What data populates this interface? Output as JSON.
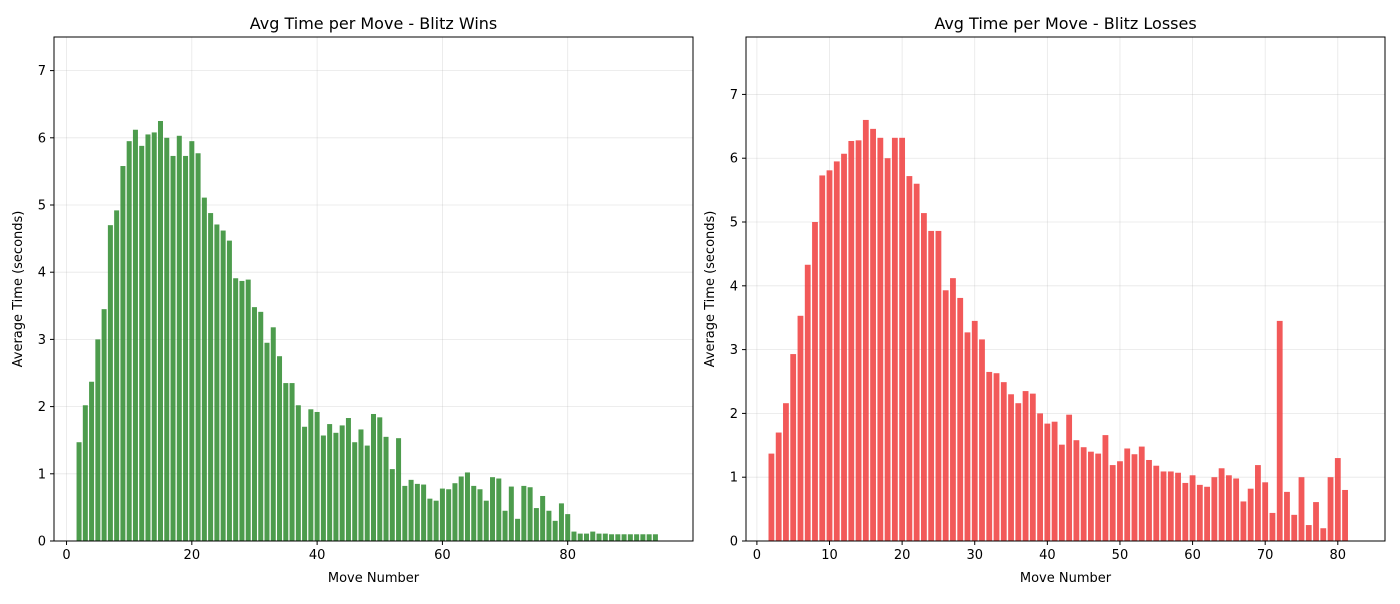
{
  "chart_data": [
    {
      "type": "bar",
      "title": "Avg Time per Move - Blitz Wins",
      "xlabel": "Move Number",
      "ylabel": "Average Time (seconds)",
      "xlim": [
        -2,
        100
      ],
      "ylim": [
        0,
        7.5
      ],
      "xticks": [
        0,
        20,
        40,
        60,
        80
      ],
      "yticks": [
        0,
        1,
        2,
        3,
        4,
        5,
        6,
        7
      ],
      "grid": true,
      "color": "#2e8b2e",
      "x": [
        2,
        3,
        4,
        5,
        6,
        7,
        8,
        9,
        10,
        11,
        12,
        13,
        14,
        15,
        16,
        17,
        18,
        19,
        20,
        21,
        22,
        23,
        24,
        25,
        26,
        27,
        28,
        29,
        30,
        31,
        32,
        33,
        34,
        35,
        36,
        37,
        38,
        39,
        40,
        41,
        42,
        43,
        44,
        45,
        46,
        47,
        48,
        49,
        50,
        51,
        52,
        53,
        54,
        55,
        56,
        57,
        58,
        59,
        60,
        61,
        62,
        63,
        64,
        65,
        66,
        67,
        68,
        69,
        70,
        71,
        72,
        73,
        74,
        75,
        76,
        77,
        78,
        79,
        80,
        81,
        82,
        83,
        84,
        85,
        86,
        87,
        88,
        89,
        90,
        91,
        92,
        93,
        94
      ],
      "values": [
        1.47,
        2.02,
        2.37,
        3.0,
        3.45,
        4.7,
        4.92,
        5.58,
        5.95,
        6.12,
        5.88,
        6.05,
        6.08,
        6.25,
        6.0,
        5.73,
        6.03,
        5.73,
        5.95,
        5.77,
        5.11,
        4.88,
        4.71,
        4.62,
        4.47,
        3.91,
        3.87,
        3.89,
        3.48,
        3.41,
        2.95,
        3.18,
        2.75,
        2.35,
        2.35,
        2.02,
        1.7,
        1.96,
        1.92,
        1.57,
        1.74,
        1.61,
        1.72,
        1.83,
        1.47,
        1.66,
        1.42,
        1.89,
        1.84,
        1.55,
        1.07,
        1.53,
        0.82,
        0.91,
        0.85,
        0.84,
        0.63,
        0.6,
        0.78,
        0.77,
        0.86,
        0.96,
        1.02,
        0.82,
        0.77,
        0.6,
        0.95,
        0.93,
        0.45,
        0.81,
        0.33,
        0.82,
        0.8,
        0.49,
        0.67,
        0.45,
        0.3,
        0.56,
        0.4,
        0.14,
        0.11,
        0.11,
        0.14,
        0.11,
        0.11,
        0.1,
        0.1,
        0.1,
        0.1,
        0.1,
        0.1,
        0.1,
        0.1
      ]
    },
    {
      "type": "bar",
      "title": "Avg Time per Move - Blitz Losses",
      "xlabel": "Move Number",
      "ylabel": "Average Time (seconds)",
      "xlim": [
        -1.5,
        86.5
      ],
      "ylim": [
        0,
        7.9
      ],
      "xticks": [
        0,
        10,
        20,
        30,
        40,
        50,
        60,
        70,
        80
      ],
      "yticks": [
        0,
        1,
        2,
        3,
        4,
        5,
        6,
        7
      ],
      "grid": true,
      "color": "#f03c3c",
      "x": [
        2,
        3,
        4,
        5,
        6,
        7,
        8,
        9,
        10,
        11,
        12,
        13,
        14,
        15,
        16,
        17,
        18,
        19,
        20,
        21,
        22,
        23,
        24,
        25,
        26,
        27,
        28,
        29,
        30,
        31,
        32,
        33,
        34,
        35,
        36,
        37,
        38,
        39,
        40,
        41,
        42,
        43,
        44,
        45,
        46,
        47,
        48,
        49,
        50,
        51,
        52,
        53,
        54,
        55,
        56,
        57,
        58,
        59,
        60,
        61,
        62,
        63,
        64,
        65,
        66,
        67,
        68,
        69,
        70,
        71,
        72,
        73,
        74,
        75,
        76,
        77,
        78,
        79,
        80,
        81
      ],
      "values": [
        1.37,
        1.7,
        2.16,
        2.93,
        3.53,
        4.33,
        5.0,
        5.73,
        5.81,
        5.95,
        6.07,
        6.27,
        6.28,
        6.6,
        6.46,
        6.32,
        6.0,
        6.32,
        6.32,
        5.72,
        5.6,
        5.14,
        4.86,
        4.86,
        3.93,
        4.12,
        3.81,
        3.27,
        3.45,
        3.16,
        2.65,
        2.63,
        2.49,
        2.3,
        2.16,
        2.35,
        2.31,
        2.0,
        1.84,
        1.87,
        1.51,
        1.98,
        1.58,
        1.47,
        1.4,
        1.37,
        1.66,
        1.19,
        1.25,
        1.45,
        1.36,
        1.48,
        1.27,
        1.18,
        1.09,
        1.09,
        1.07,
        0.91,
        1.03,
        0.88,
        0.85,
        1.0,
        1.14,
        1.03,
        0.98,
        0.62,
        0.82,
        1.19,
        0.92,
        0.44,
        3.45,
        0.77,
        0.41,
        1.0,
        0.25,
        0.61,
        0.2,
        1.0,
        1.3,
        0.8
      ]
    }
  ]
}
